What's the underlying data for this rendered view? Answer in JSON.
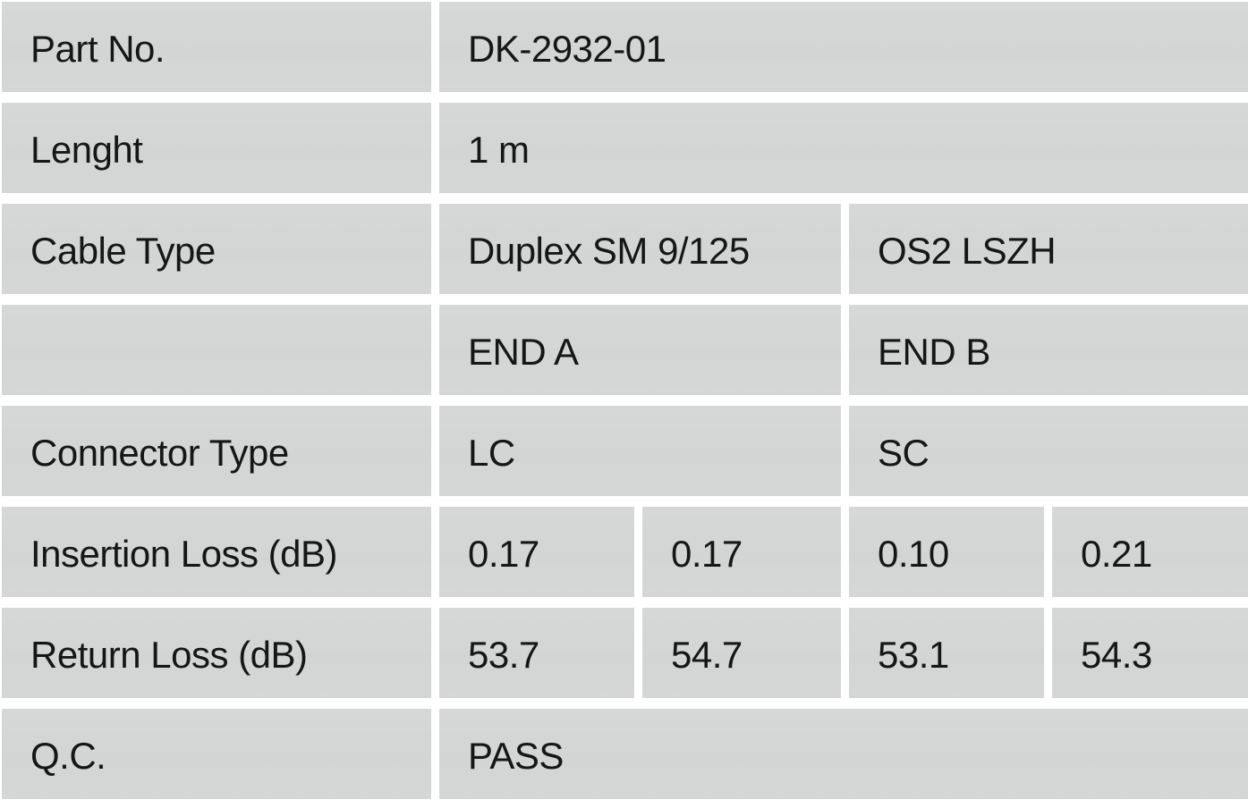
{
  "colors": {
    "cell_bg": "#d4d6d5",
    "gap": "#ffffff",
    "text": "#161616"
  },
  "rows": {
    "part_no": {
      "label": "Part No.",
      "value": "DK-2932-01"
    },
    "length": {
      "label": "Lenght",
      "value": "1 m"
    },
    "cable_type": {
      "label": "Cable Type",
      "end_a": "Duplex SM 9/125",
      "end_b": "OS2 LSZH"
    },
    "ends_header": {
      "label": "",
      "end_a": "END A",
      "end_b": "END B"
    },
    "connector_type": {
      "label": "Connector Type",
      "end_a": "LC",
      "end_b": "SC"
    },
    "insertion_loss": {
      "label": "Insertion Loss (dB)",
      "a1": "0.17",
      "a2": "0.17",
      "b1": "0.10",
      "b2": "0.21"
    },
    "return_loss": {
      "label": "Return Loss (dB)",
      "a1": "53.7",
      "a2": "54.7",
      "b1": "53.1",
      "b2": "54.3"
    },
    "qc": {
      "label": "Q.C.",
      "value": "PASS"
    }
  }
}
